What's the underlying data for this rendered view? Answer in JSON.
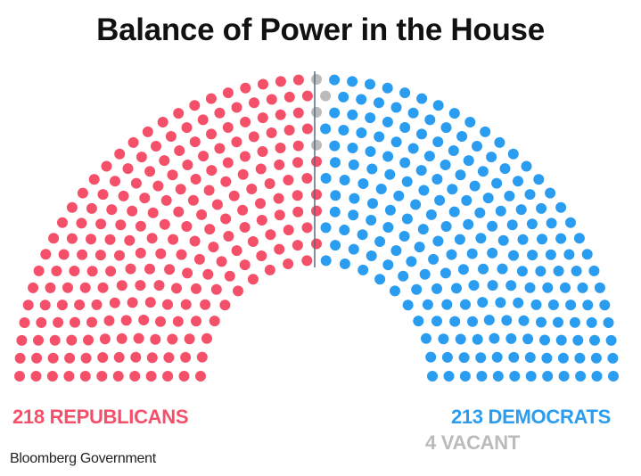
{
  "chart_data": {
    "type": "parliament",
    "title": "Balance of Power in the House",
    "total_seats": 435,
    "series": [
      {
        "name": "REPUBLICANS",
        "value": 218,
        "color": "#f5506a"
      },
      {
        "name": "VACANT",
        "value": 4,
        "color": "#bbbbbb"
      },
      {
        "name": "DEMOCRATS",
        "value": 213,
        "color": "#2a9df0"
      }
    ],
    "labels": {
      "republicans": "218 REPUBLICANS",
      "democrats": "213 DEMOCRATS",
      "vacant": "4 VACANT"
    },
    "divider_color": "#5a6a78"
  },
  "source": "Bloomberg Government"
}
